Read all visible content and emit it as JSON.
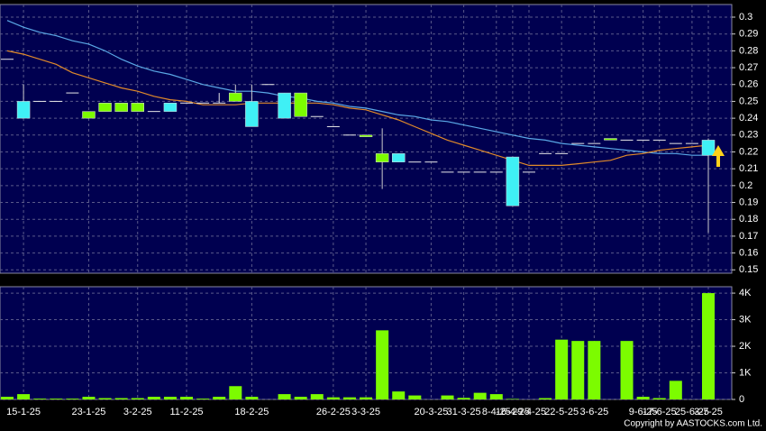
{
  "chart_data": {
    "type": "candlestick",
    "categories": [
      null,
      "15-1-25",
      null,
      null,
      null,
      "23-1-25",
      null,
      null,
      "3-2-25",
      null,
      null,
      "11-2-25",
      null,
      null,
      null,
      "18-2-25",
      null,
      null,
      null,
      null,
      "26-2-25",
      null,
      "3-3-25",
      null,
      null,
      null,
      "20-3-25",
      null,
      "31-3-25",
      null,
      "8-4-25",
      "16-4-25",
      "29-4-25",
      null,
      "22-5-25",
      null,
      "3-6-25",
      null,
      null,
      "9-6-25",
      "17-6-25",
      null,
      "25-6-25",
      "3-7-25"
    ],
    "open": [
      0.275,
      0.25,
      0.25,
      0.25,
      0.255,
      0.24,
      0.244,
      0.244,
      0.244,
      0.244,
      0.249,
      0.249,
      0.249,
      0.249,
      0.25,
      0.25,
      0.26,
      0.255,
      0.241,
      0.241,
      0.235,
      0.23,
      0.229,
      0.214,
      0.219,
      0.214,
      0.214,
      0.208,
      0.208,
      0.208,
      0.208,
      0.217,
      0.208,
      0.219,
      0.219,
      0.225,
      0.225,
      0.227,
      0.227,
      0.227,
      0.227,
      0.225,
      0.225,
      0.227
    ],
    "high": [
      0.275,
      0.26,
      0.25,
      0.25,
      0.255,
      0.244,
      0.249,
      0.249,
      0.249,
      0.244,
      0.249,
      0.249,
      0.249,
      0.255,
      0.26,
      0.26,
      0.26,
      0.255,
      0.255,
      0.241,
      0.235,
      0.23,
      0.23,
      0.234,
      0.219,
      0.214,
      0.214,
      0.208,
      0.208,
      0.208,
      0.208,
      0.217,
      0.208,
      0.219,
      0.219,
      0.225,
      0.225,
      0.228,
      0.227,
      0.227,
      0.227,
      0.225,
      0.225,
      0.228
    ],
    "low": [
      0.275,
      0.24,
      0.25,
      0.25,
      0.255,
      0.24,
      0.244,
      0.244,
      0.244,
      0.244,
      0.244,
      0.249,
      0.249,
      0.249,
      0.25,
      0.235,
      0.26,
      0.24,
      0.241,
      0.241,
      0.235,
      0.23,
      0.229,
      0.198,
      0.214,
      0.214,
      0.214,
      0.208,
      0.208,
      0.208,
      0.208,
      0.188,
      0.208,
      0.219,
      0.219,
      0.225,
      0.225,
      0.227,
      0.227,
      0.227,
      0.227,
      0.225,
      0.225,
      0.172
    ],
    "close": [
      0.275,
      0.24,
      0.25,
      0.25,
      0.255,
      0.244,
      0.249,
      0.249,
      0.249,
      0.244,
      0.244,
      0.249,
      0.249,
      0.249,
      0.255,
      0.235,
      0.26,
      0.24,
      0.255,
      0.241,
      0.235,
      0.23,
      0.23,
      0.219,
      0.214,
      0.214,
      0.214,
      0.208,
      0.208,
      0.208,
      0.208,
      0.188,
      0.208,
      0.219,
      0.219,
      0.225,
      0.225,
      0.228,
      0.227,
      0.227,
      0.227,
      0.225,
      0.225,
      0.218
    ],
    "up_color": "#7cfc00",
    "down_color": "#3ff0f5",
    "flat_color": "#e8e8e8",
    "series": [
      {
        "color": "#5aa8e6",
        "values": [
          0.298,
          0.294,
          0.291,
          0.289,
          0.286,
          0.284,
          0.28,
          0.275,
          0.271,
          0.268,
          0.266,
          0.263,
          0.26,
          0.258,
          0.256,
          0.256,
          0.255,
          0.253,
          0.252,
          0.25,
          0.249,
          0.247,
          0.246,
          0.244,
          0.242,
          0.241,
          0.239,
          0.238,
          0.236,
          0.234,
          0.232,
          0.23,
          0.228,
          0.227,
          0.225,
          0.224,
          0.223,
          0.222,
          0.221,
          0.22,
          0.219,
          0.219,
          0.218,
          0.218
        ]
      },
      {
        "color": "#e08a2a",
        "values": [
          0.28,
          0.278,
          0.275,
          0.272,
          0.267,
          0.264,
          0.261,
          0.258,
          0.256,
          0.253,
          0.251,
          0.25,
          0.248,
          0.248,
          0.248,
          0.249,
          0.249,
          0.249,
          0.249,
          0.249,
          0.248,
          0.246,
          0.245,
          0.242,
          0.239,
          0.235,
          0.231,
          0.227,
          0.224,
          0.221,
          0.218,
          0.215,
          0.212,
          0.212,
          0.212,
          0.213,
          0.214,
          0.215,
          0.218,
          0.219,
          0.221,
          0.222,
          0.223,
          0.224
        ]
      }
    ],
    "ylim": [
      0.148,
      0.3075
    ],
    "yticks": [
      0.15,
      0.16,
      0.17,
      0.18,
      0.19,
      0.2,
      0.21,
      0.22,
      0.23,
      0.24,
      0.25,
      0.26,
      0.27,
      0.28,
      0.29,
      0.3
    ],
    "volume": {
      "values": [
        100,
        200,
        30,
        30,
        30,
        100,
        50,
        50,
        50,
        100,
        100,
        100,
        30,
        100,
        500,
        100,
        0,
        200,
        100,
        200,
        80,
        80,
        80,
        2600,
        300,
        150,
        0,
        150,
        60,
        250,
        200,
        20,
        0,
        50,
        2250,
        2200,
        2200,
        0,
        2200,
        100,
        50,
        700,
        0,
        4000
      ],
      "color": "#7cfc00",
      "ylim": [
        0,
        4240
      ],
      "yticks": [
        0,
        {
          "value": 1000,
          "label": "1K"
        },
        {
          "value": 2000,
          "label": "2K"
        },
        {
          "value": 3000,
          "label": "3K"
        },
        {
          "value": 4000,
          "label": "4K"
        }
      ]
    },
    "grid": true,
    "footer": "Copyright by AASTOCKS.com Ltd."
  }
}
